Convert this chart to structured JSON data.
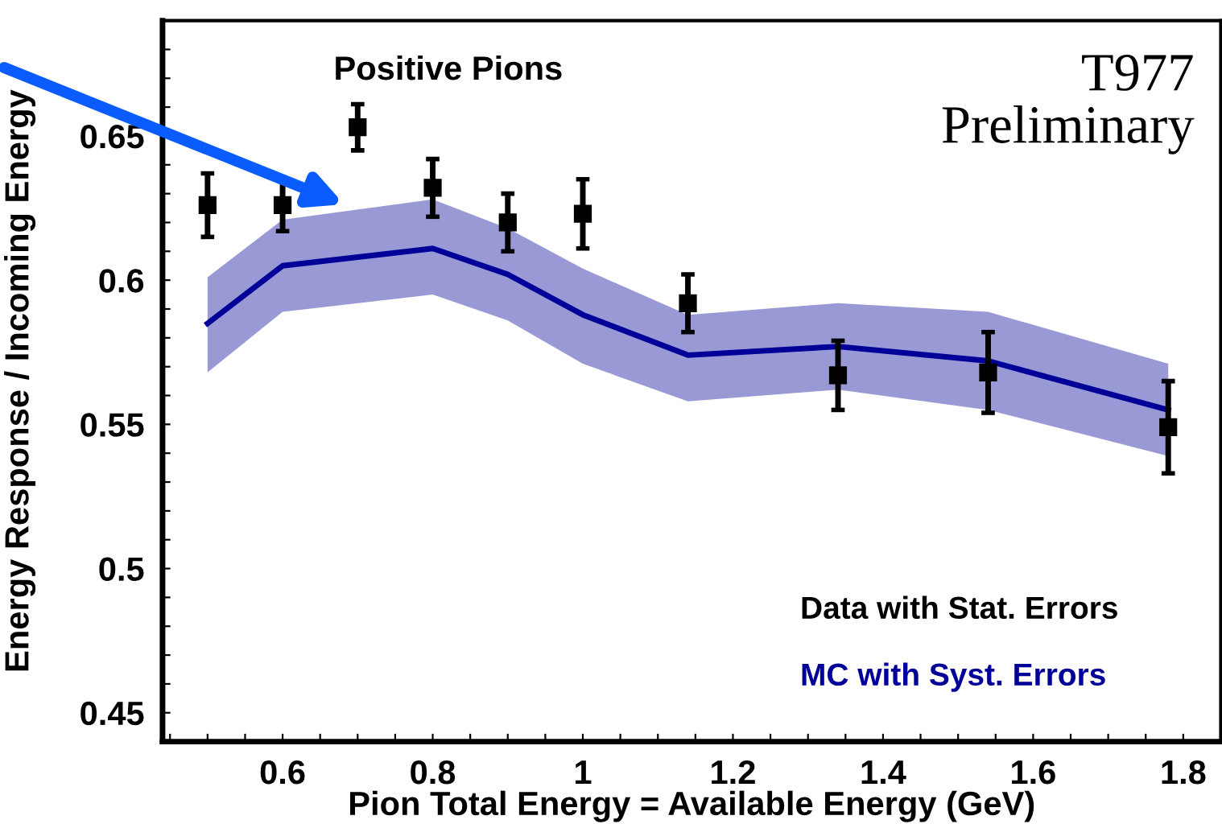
{
  "chart_data": {
    "type": "scatter",
    "xlabel": "Pion Total Energy = Available Energy (GeV)",
    "ylabel": "Energy Response / Incoming Energy",
    "annotations": [
      "Positive Pions",
      "T977\nPreliminary"
    ],
    "xlim": [
      0.44,
      1.85
    ],
    "ylim": [
      0.44,
      0.69
    ],
    "xticks": [
      {
        "value": 0.45,
        "label": null
      },
      {
        "value": 0.5,
        "label": null
      },
      {
        "value": 0.55,
        "label": null
      },
      0.6,
      {
        "value": 0.65,
        "label": null
      },
      {
        "value": 0.7,
        "label": null
      },
      {
        "value": 0.75,
        "label": null
      },
      0.8,
      {
        "value": 0.85,
        "label": null
      },
      {
        "value": 0.9,
        "label": null
      },
      {
        "value": 0.95,
        "label": null
      },
      1,
      {
        "value": 1.05,
        "label": null
      },
      {
        "value": 1.1,
        "label": null
      },
      {
        "value": 1.15,
        "label": null
      },
      1.2,
      {
        "value": 1.25,
        "label": null
      },
      {
        "value": 1.3,
        "label": null
      },
      {
        "value": 1.35,
        "label": null
      },
      1.4,
      {
        "value": 1.45,
        "label": null
      },
      {
        "value": 1.5,
        "label": null
      },
      {
        "value": 1.55,
        "label": null
      },
      1.6,
      {
        "value": 1.65,
        "label": null
      },
      {
        "value": 1.7,
        "label": null
      },
      {
        "value": 1.75,
        "label": null
      },
      1.8,
      {
        "value": 1.85,
        "label": null
      }
    ],
    "yticks": [
      0.45,
      {
        "value": 0.46,
        "label": null
      },
      {
        "value": 0.47,
        "label": null
      },
      {
        "value": 0.48,
        "label": null
      },
      {
        "value": 0.49,
        "label": null
      },
      0.5,
      {
        "value": 0.51,
        "label": null
      },
      {
        "value": 0.52,
        "label": null
      },
      {
        "value": 0.53,
        "label": null
      },
      {
        "value": 0.54,
        "label": null
      },
      0.55,
      {
        "value": 0.56,
        "label": null
      },
      {
        "value": 0.57,
        "label": null
      },
      {
        "value": 0.58,
        "label": null
      },
      {
        "value": 0.59,
        "label": null
      },
      0.6,
      {
        "value": 0.61,
        "label": null
      },
      {
        "value": 0.62,
        "label": null
      },
      {
        "value": 0.63,
        "label": null
      },
      {
        "value": 0.64,
        "label": null
      },
      0.65,
      {
        "value": 0.66,
        "label": null
      },
      {
        "value": 0.67,
        "label": null
      },
      {
        "value": 0.68,
        "label": null
      }
    ],
    "grid": false,
    "legend": "bottom right",
    "series": [
      {
        "name": "Data with Stat. Errors",
        "color": "#000000",
        "marker": "square",
        "x": [
          0.5,
          0.6,
          0.7,
          0.8,
          0.9,
          1.0,
          1.14,
          1.34,
          1.54,
          1.78
        ],
        "values": [
          0.626,
          0.626,
          0.653,
          0.632,
          0.62,
          0.623,
          0.592,
          0.567,
          0.568,
          0.549
        ],
        "errors": [
          0.011,
          0.009,
          0.008,
          0.01,
          0.01,
          0.012,
          0.01,
          0.012,
          0.014,
          0.016
        ]
      },
      {
        "name": "MC with Syst. Errors",
        "type": "line",
        "color": "#000099",
        "x": [
          0.5,
          0.6,
          0.8,
          0.9,
          1.0,
          1.14,
          1.34,
          1.54,
          1.78
        ],
        "values": [
          0.585,
          0.605,
          0.611,
          0.602,
          0.588,
          0.574,
          0.577,
          0.572,
          0.555
        ],
        "lower": [
          0.568,
          0.589,
          0.595,
          0.586,
          0.571,
          0.558,
          0.562,
          0.555,
          0.539
        ],
        "upper": [
          0.601,
          0.621,
          0.628,
          0.618,
          0.604,
          0.588,
          0.592,
          0.589,
          0.571
        ]
      }
    ]
  }
}
